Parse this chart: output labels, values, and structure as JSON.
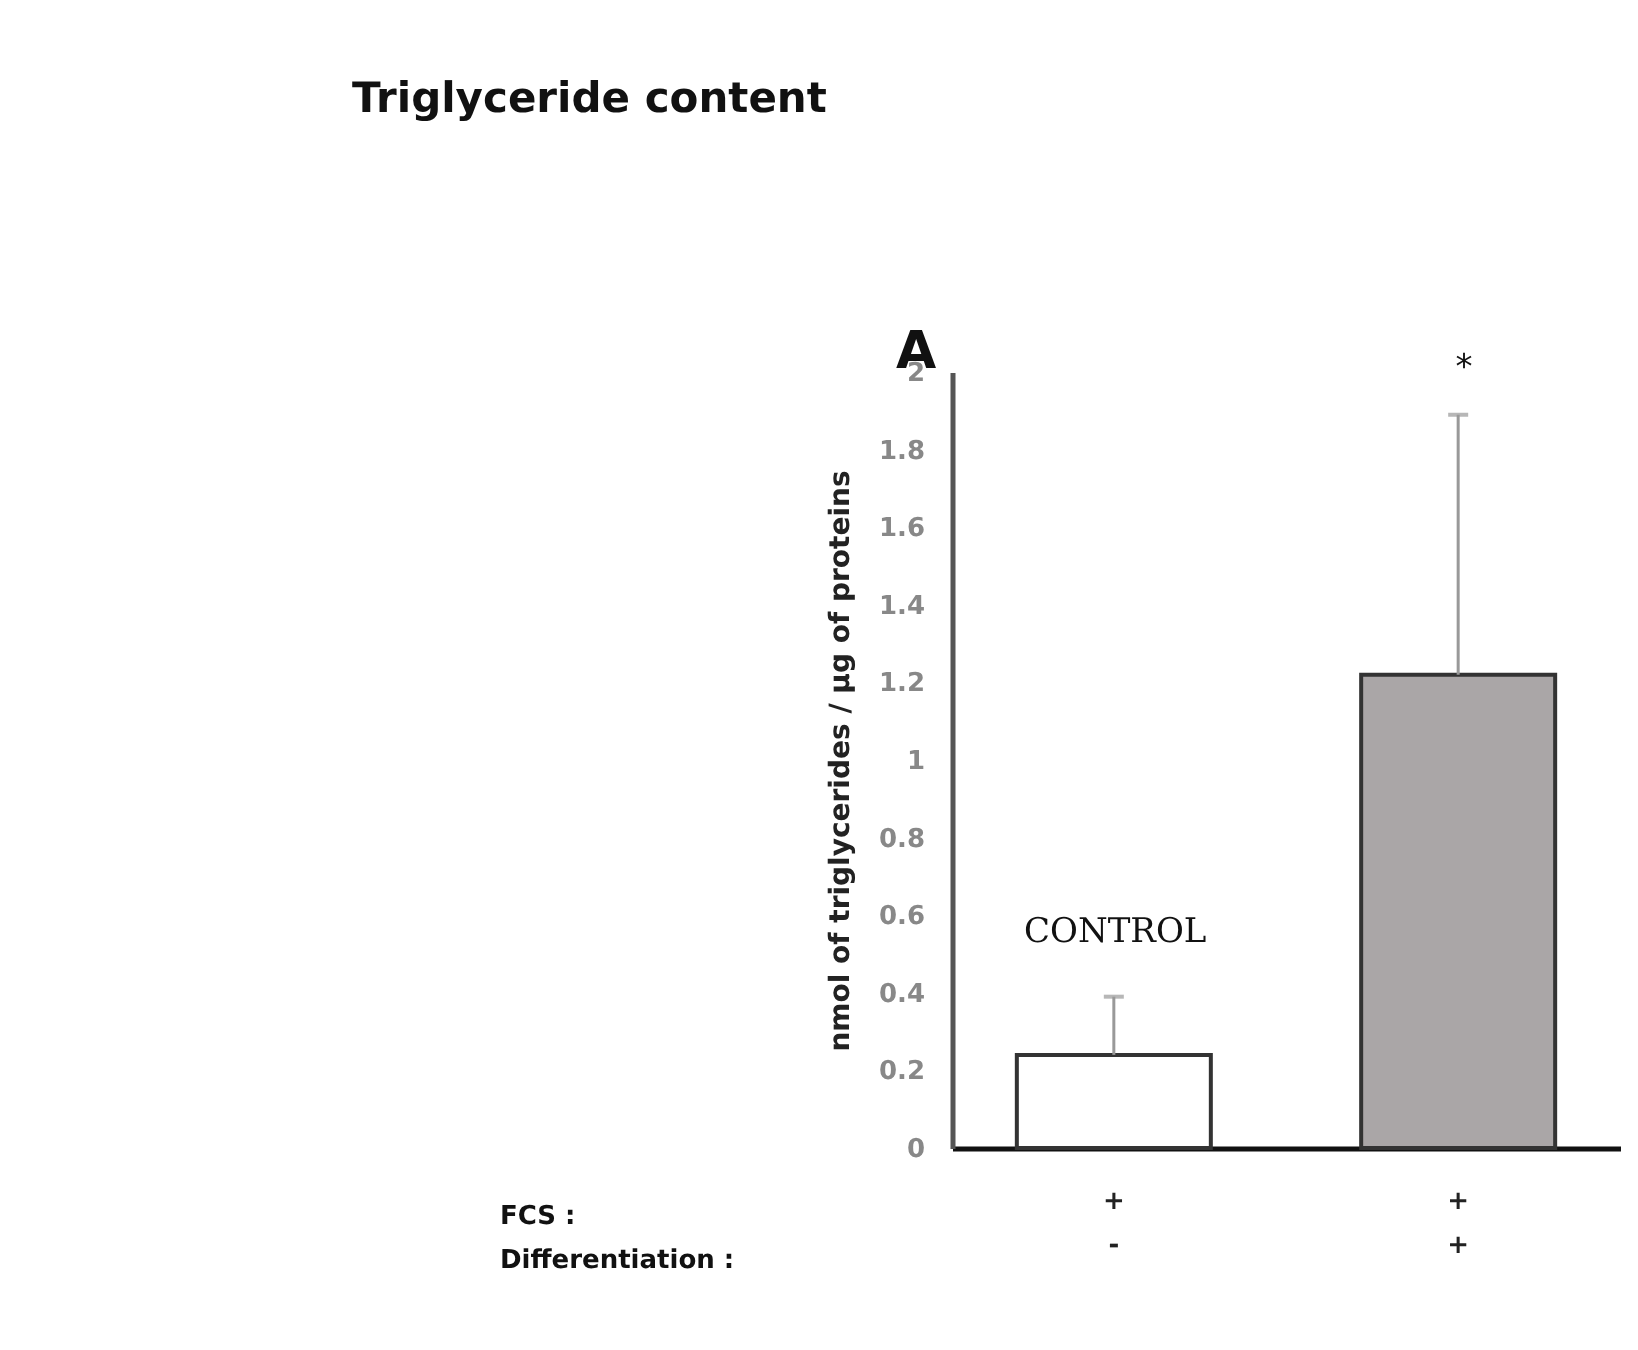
{
  "chart_data": {
    "type": "bar",
    "title": "Triglyceride content",
    "ylabel": "nmol of triglycerides / µg of proteins",
    "categories": [
      "+\n-",
      "+\n+"
    ],
    "values": [
      0.24,
      1.22
    ],
    "colors": [
      "#ffffff",
      "#aaa6a7"
    ],
    "errors": [
      [
        0.24,
        0.39
      ],
      [
        1.22,
        1.89
      ]
    ],
    "ylim": [
      0,
      2
    ],
    "yticks": [
      0,
      0.2,
      0.4,
      0.6,
      0.8,
      1,
      1.2,
      1.4,
      1.6,
      1.8,
      2
    ],
    "grid": false,
    "legend": false,
    "annotations": [
      "A",
      "FCS :",
      "Differentiation :",
      "CONTROL",
      "*"
    ]
  }
}
